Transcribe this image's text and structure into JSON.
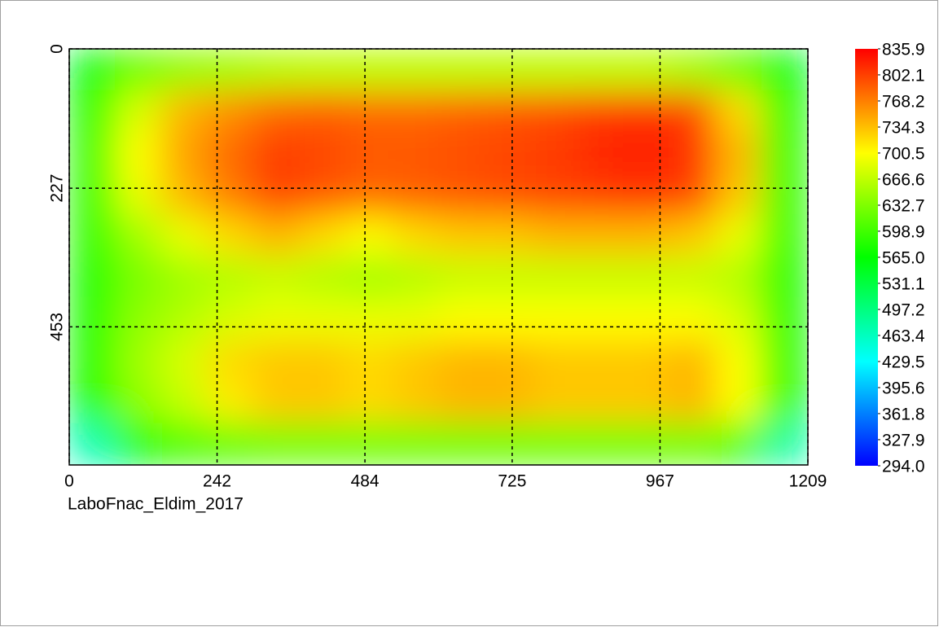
{
  "chart_data": {
    "type": "heatmap",
    "caption": "LaboFnac_Eldim_2017",
    "xlim": [
      0,
      1209
    ],
    "ylim": [
      678,
      0
    ],
    "xticks": [
      0,
      242,
      484,
      725,
      967,
      1209
    ],
    "yticks": [
      0,
      227,
      453
    ],
    "grid": true,
    "zlim": [
      294,
      835.9
    ],
    "colors": [
      "#0000ff",
      "#00ffff",
      "#00ff00",
      "#ffff00",
      "#ff0000"
    ],
    "colorbar_ticks": [
      835.9,
      802.1,
      768.2,
      734.3,
      700.5,
      666.6,
      632.7,
      598.9,
      {
        "value": 565,
        "label": "565.0"
      },
      531.1,
      497.2,
      463.4,
      429.5,
      395.6,
      361.8,
      327.9,
      {
        "value": 294,
        "label": "294.0"
      }
    ],
    "z": [
      [
        560,
        620,
        640,
        650,
        660,
        665,
        665,
        665,
        665,
        665,
        665,
        665,
        665,
        650,
        620,
        560
      ],
      [
        580,
        680,
        740,
        760,
        780,
        785,
        780,
        780,
        785,
        790,
        795,
        805,
        810,
        800,
        720,
        580
      ],
      [
        590,
        700,
        750,
        780,
        805,
        800,
        790,
        790,
        795,
        800,
        805,
        815,
        820,
        810,
        740,
        590
      ],
      [
        590,
        690,
        740,
        770,
        800,
        790,
        780,
        785,
        790,
        795,
        800,
        805,
        810,
        800,
        730,
        590
      ],
      [
        590,
        650,
        690,
        720,
        740,
        720,
        700,
        720,
        730,
        730,
        740,
        740,
        740,
        730,
        690,
        590
      ],
      [
        580,
        630,
        650,
        660,
        670,
        660,
        650,
        660,
        670,
        670,
        670,
        670,
        670,
        670,
        660,
        580
      ],
      [
        580,
        640,
        660,
        680,
        690,
        690,
        690,
        690,
        700,
        700,
        700,
        700,
        700,
        700,
        680,
        580
      ],
      [
        580,
        650,
        680,
        720,
        730,
        730,
        720,
        730,
        740,
        740,
        730,
        730,
        730,
        740,
        700,
        580
      ],
      [
        570,
        640,
        670,
        710,
        730,
        730,
        720,
        730,
        740,
        740,
        730,
        730,
        730,
        740,
        700,
        570
      ],
      [
        470,
        560,
        600,
        610,
        620,
        620,
        620,
        620,
        620,
        620,
        620,
        620,
        620,
        620,
        600,
        480
      ]
    ]
  }
}
